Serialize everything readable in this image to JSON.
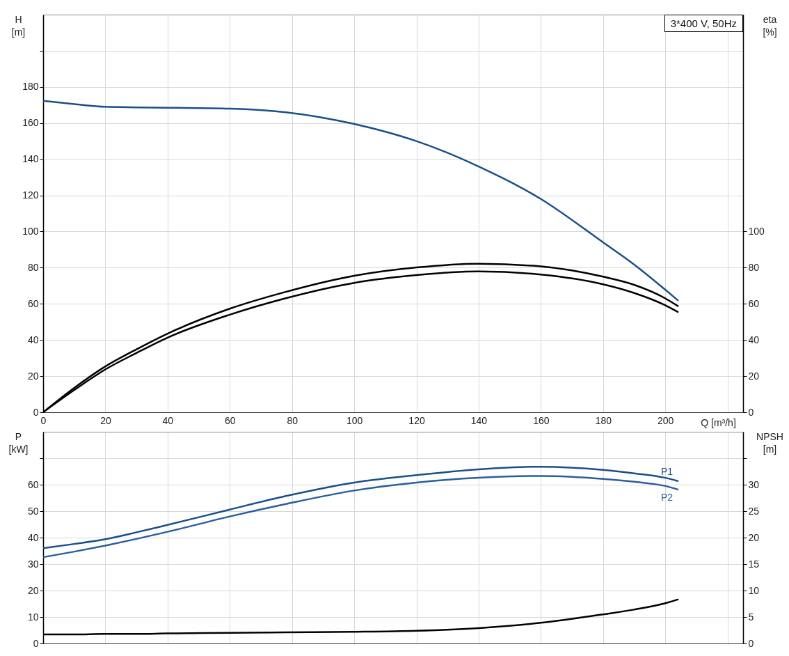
{
  "chart_data": [
    {
      "type": "line",
      "xlabel": "Q [m³/h]",
      "ylabel": "H [m]",
      "y2label": "eta [%]",
      "x": [
        0,
        10,
        20,
        30,
        40,
        60,
        78,
        100,
        120,
        140,
        160,
        180,
        190,
        200,
        204
      ],
      "series": [
        {
          "color": "#1b4f8a",
          "values": [
            172.3,
            170.5,
            169,
            168.7,
            168.5,
            168,
            166,
            159.5,
            150,
            136,
            118,
            94,
            81.7,
            67.8,
            62
          ]
        },
        {
          "color": "#000000",
          "axis": "y2",
          "values": [
            0,
            13.5,
            25.4,
            34.8,
            43.5,
            57.3,
            66.6,
            75.5,
            80.1,
            82.2,
            80.7,
            75,
            70.5,
            63,
            58.8
          ]
        },
        {
          "color": "#000000",
          "axis": "y2",
          "values": [
            0,
            12.3,
            23.7,
            32.8,
            41.3,
            54,
            63.1,
            71.6,
            75.9,
            77.9,
            76.2,
            70.8,
            66,
            59.2,
            55.5
          ]
        }
      ],
      "xlim": [
        0,
        225
      ],
      "xticks": [
        0,
        20,
        40,
        60,
        80,
        100,
        120,
        140,
        160,
        180,
        200,
        {
          "value": 220,
          "label": null
        }
      ],
      "ylim": [
        0,
        220
      ],
      "yticks": [
        0,
        20,
        40,
        60,
        80,
        100,
        120,
        140,
        160,
        180,
        {
          "value": 200,
          "label": null
        }
      ],
      "y2lim": [
        0,
        220
      ],
      "y2ticks": [
        0,
        20,
        40,
        60,
        80,
        100
      ],
      "grid": true,
      "annotations": [
        "3*400 V, 50Hz"
      ]
    },
    {
      "type": "line",
      "ylabel": "P [kW]",
      "y2label": "NPSH [m]",
      "x": [
        0,
        10,
        20,
        30,
        40,
        60,
        78,
        100,
        120,
        140,
        160,
        180,
        190,
        200,
        204
      ],
      "series": [
        {
          "name": "P1",
          "color": "#1b4f8a",
          "values": [
            36,
            37.6,
            39.4,
            42,
            44.8,
            50.6,
            55.7,
            60.8,
            63.6,
            65.8,
            66.8,
            65.6,
            64.3,
            62.6,
            61.4
          ]
        },
        {
          "name": "P2",
          "color": "#2b5e9c",
          "values": [
            32.6,
            34.7,
            37,
            39.5,
            42.2,
            48,
            52.7,
            57.8,
            60.8,
            62.6,
            63.3,
            62.2,
            61.1,
            59.5,
            58.2
          ]
        },
        {
          "color": "#000000",
          "axis": "y2",
          "values": [
            1.7,
            1.7,
            1.8,
            1.8,
            1.9,
            2,
            2.1,
            2.2,
            2.4,
            2.9,
            3.9,
            5.5,
            6.4,
            7.6,
            8.3
          ]
        }
      ],
      "xlim": [
        0,
        225
      ],
      "xticks": [
        0,
        20,
        40,
        60,
        80,
        100,
        120,
        140,
        160,
        180,
        200,
        {
          "value": 220,
          "label": null
        }
      ],
      "ylim": [
        0,
        80
      ],
      "yticks": [
        0,
        10,
        20,
        30,
        40,
        50,
        60,
        {
          "value": 70,
          "label": null
        }
      ],
      "y2lim": [
        0,
        40
      ],
      "y2ticks": [
        0,
        5,
        10,
        15,
        20,
        25,
        30,
        {
          "value": 35,
          "label": null
        }
      ],
      "grid": true,
      "tick_labels": "y"
    }
  ]
}
